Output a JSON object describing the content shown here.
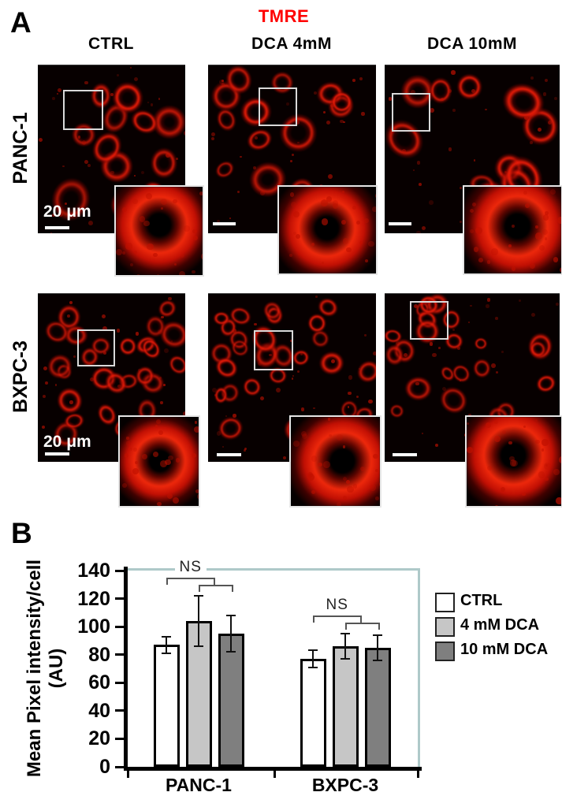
{
  "panel_a": {
    "label": "A",
    "title": "TMRE",
    "title_color": "#ff0000",
    "column_headers": [
      "CTRL",
      "DCA 4mM",
      "DCA 10mM"
    ],
    "row_labels": [
      "PANC-1",
      "BXPC-3"
    ],
    "scale_bar_label": "20 μm"
  },
  "panel_b": {
    "label": "B"
  },
  "chart_data": {
    "type": "bar",
    "categories": [
      "PANC-1",
      "BXPC-3"
    ],
    "series": [
      {
        "name": "CTRL",
        "fill": "#ffffff",
        "values": [
          87,
          77
        ],
        "errors": [
          6,
          6
        ]
      },
      {
        "name": "4 mM DCA",
        "fill": "#c6c6c6",
        "values": [
          104,
          86
        ],
        "errors": [
          18,
          9
        ]
      },
      {
        "name": "10 mM DCA",
        "fill": "#7f7f7f",
        "values": [
          95,
          85
        ],
        "errors": [
          13,
          9
        ]
      }
    ],
    "ylabel": "Mean Pixel intensity/cell",
    "ylabel_units": "(AU)",
    "ylim": [
      0,
      140
    ],
    "ytick_step": 20,
    "grid": false,
    "legend_position": "right",
    "annotations": [
      {
        "text": "NS",
        "category": "PANC-1"
      },
      {
        "text": "NS",
        "category": "BXPC-3"
      }
    ],
    "frame_color": "#aec9c9",
    "axis_color": "#000000"
  }
}
